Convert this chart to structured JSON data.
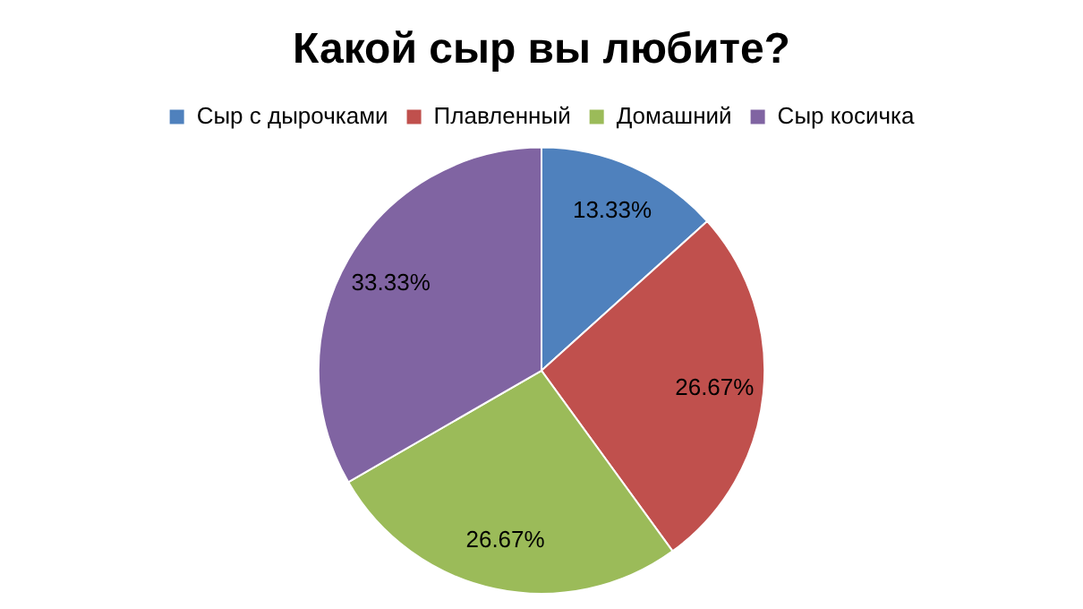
{
  "chart_data": {
    "type": "pie",
    "title": "Какой сыр вы любите?",
    "categories": [
      "Сыр с дырочками",
      "Плавленный",
      "Домашний",
      "Сыр косичка"
    ],
    "values": [
      13.33,
      26.67,
      26.67,
      33.33
    ],
    "colors": [
      "#4f81bd",
      "#c0504d",
      "#9bbb59",
      "#8064a2"
    ],
    "value_labels": [
      "13.33%",
      "26.67%",
      "26.67%",
      "33.33%"
    ],
    "legend": "top"
  }
}
